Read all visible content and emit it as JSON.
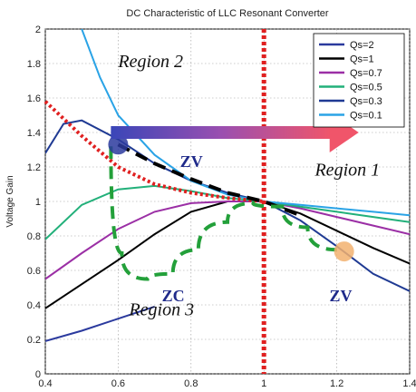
{
  "chart_data": {
    "type": "line",
    "title": "DC Characteristic of LLC Resonant Converter",
    "xlabel": "",
    "ylabel": "Voltage Gain",
    "xlim": [
      0.4,
      1.4
    ],
    "ylim": [
      0,
      2
    ],
    "xticks": [
      "0.4",
      "0.6",
      "0.8",
      "1",
      "1.2",
      "1.4"
    ],
    "yticks": [
      "0",
      "0.2",
      "0.4",
      "0.6",
      "0.8",
      "1",
      "1.2",
      "1.4",
      "1.6",
      "1.8",
      "2"
    ],
    "grid": true,
    "legend_position": "top-right",
    "series": [
      {
        "name": "Qs=2",
        "color": "#2b3a9e",
        "x": [
          0.4,
          0.5,
          0.6,
          0.7
        ],
        "y": [
          0.19,
          0.25,
          0.32,
          0.39
        ]
      },
      {
        "name": "Qs=1",
        "color": "#000000",
        "x": [
          0.4,
          0.5,
          0.6,
          0.7,
          0.8,
          0.9,
          1.0,
          1.1,
          1.2,
          1.3,
          1.4
        ],
        "y": [
          0.38,
          0.52,
          0.66,
          0.81,
          0.94,
          1.0,
          1.0,
          0.93,
          0.83,
          0.73,
          0.64
        ]
      },
      {
        "name": "Qs=0.7",
        "color": "#9b2fa5",
        "x": [
          0.4,
          0.5,
          0.6,
          0.7,
          0.8,
          0.9,
          1.0,
          1.1,
          1.2,
          1.3,
          1.4
        ],
        "y": [
          0.55,
          0.7,
          0.84,
          0.94,
          0.99,
          1.0,
          1.0,
          0.96,
          0.91,
          0.86,
          0.81
        ]
      },
      {
        "name": "Qs=0.5",
        "color": "#22b07a",
        "x": [
          0.4,
          0.5,
          0.6,
          0.7,
          0.8,
          0.9,
          1.0,
          1.1,
          1.2,
          1.3,
          1.4
        ],
        "y": [
          0.78,
          0.98,
          1.07,
          1.09,
          1.06,
          1.02,
          1.0,
          0.97,
          0.94,
          0.91,
          0.88
        ]
      },
      {
        "name": "Qs=0.3",
        "color": "#1f3a93",
        "x": [
          0.4,
          0.45,
          0.5,
          0.6,
          0.7,
          0.8,
          0.9,
          1.0,
          1.1,
          1.2,
          1.3,
          1.4
        ],
        "y": [
          1.28,
          1.45,
          1.47,
          1.36,
          1.22,
          1.12,
          1.05,
          1.0,
          0.89,
          0.74,
          0.58,
          0.48
        ]
      },
      {
        "name": "Qs=0.1",
        "color": "#2aa3e6",
        "x": [
          0.5,
          0.55,
          0.6,
          0.7,
          0.8,
          0.9,
          1.0,
          1.1,
          1.2,
          1.3,
          1.4
        ],
        "y": [
          2.0,
          1.72,
          1.5,
          1.27,
          1.12,
          1.04,
          1.0,
          0.98,
          0.96,
          0.94,
          0.92
        ]
      }
    ],
    "annotations": {
      "region_labels": [
        "Region 2",
        "Region 1",
        "Region 3"
      ],
      "zone_labels": [
        "ZV",
        "ZV",
        "ZC"
      ],
      "resonance_line_x": 1.0,
      "boundary_dotted": {
        "color": "#e02020",
        "x": [
          0.4,
          0.5,
          0.6,
          0.7,
          0.8,
          0.9,
          1.0
        ],
        "y": [
          1.58,
          1.38,
          1.2,
          1.1,
          1.05,
          1.02,
          1.0
        ]
      },
      "zvs_dashed": {
        "color": "#000000",
        "x": [
          0.6,
          0.7,
          0.8,
          0.9,
          1.0,
          1.1
        ],
        "y": [
          1.33,
          1.22,
          1.13,
          1.05,
          1.0,
          0.92
        ]
      },
      "zcs_dashed": {
        "color": "#23a03a",
        "x": [
          0.58,
          0.61,
          0.68,
          0.75,
          0.82,
          0.9,
          0.97,
          1.05,
          1.12,
          1.2
        ],
        "y": [
          1.32,
          0.7,
          0.55,
          0.58,
          0.72,
          0.88,
          0.99,
          0.97,
          0.85,
          0.72
        ]
      },
      "markers": [
        {
          "x": 0.6,
          "y": 1.33,
          "color": "#2b3a9e"
        },
        {
          "x": 1.22,
          "y": 0.71,
          "color": "#f2b170"
        }
      ],
      "arrow": {
        "x_start": 0.58,
        "x_end": 1.26,
        "y": 1.4
      }
    }
  }
}
